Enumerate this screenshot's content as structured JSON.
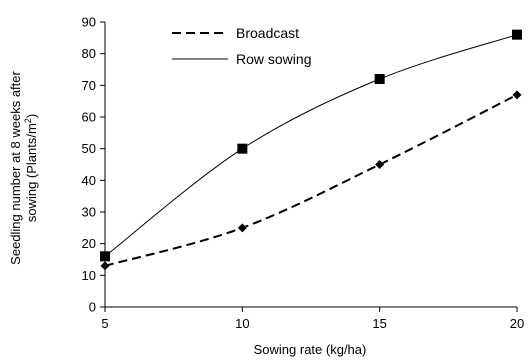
{
  "chart_data": {
    "type": "line",
    "title": "",
    "xlabel": "Sowing rate (kg/ha)",
    "ylabel_line1": "Seedling number at 8 weeks after",
    "ylabel_line2_prefix": "sowing (Plants/m",
    "ylabel_line2_sup": "2",
    "ylabel_line2_suffix": ")",
    "xlim": [
      5,
      20
    ],
    "ylim": [
      0,
      90
    ],
    "x_ticks": [
      5,
      10,
      15,
      20
    ],
    "y_ticks": [
      0,
      10,
      20,
      30,
      40,
      50,
      60,
      70,
      80,
      90
    ],
    "grid": false,
    "legend_position": "top-left",
    "series": [
      {
        "name": "Broadcast",
        "style": "dashed",
        "marker": "diamond",
        "color": "#000000",
        "x": [
          5,
          10,
          15,
          20
        ],
        "values": [
          13,
          25,
          45,
          67
        ]
      },
      {
        "name": "Row sowing",
        "style": "solid",
        "marker": "square",
        "color": "#000000",
        "x": [
          5,
          10,
          15,
          20
        ],
        "values": [
          16,
          50,
          72,
          86
        ]
      }
    ]
  }
}
